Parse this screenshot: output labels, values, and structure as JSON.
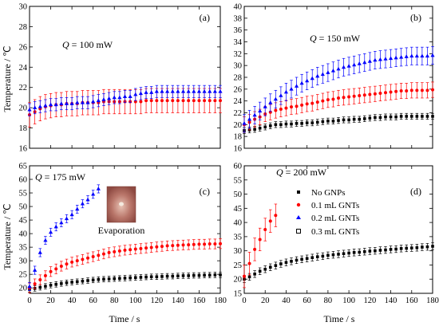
{
  "figure": {
    "ylabel": "Temperature / ℃",
    "xlabel": "Time / s"
  },
  "legend": [
    {
      "label": "No GNPs",
      "marker": "square-filled",
      "color": "#000000"
    },
    {
      "label": "0.1 mL GNTs",
      "marker": "circle",
      "color": "#ff0000"
    },
    {
      "label": "0.2 mL GNTs",
      "marker": "triangle",
      "color": "#0000ff"
    },
    {
      "label": "0.3 mL GNTs",
      "marker": "square-open",
      "color": "#000000"
    }
  ],
  "inset": {
    "label": "Evaporation"
  },
  "chart_data": [
    {
      "type": "scatter",
      "panel": "(a)",
      "annotation_q": "Q",
      "annotation_val": " = 100 mW",
      "xlim": [
        0,
        180
      ],
      "ylim": [
        16,
        30
      ],
      "xticks": [
        0,
        20,
        40,
        60,
        80,
        100,
        120,
        140,
        160,
        180
      ],
      "yticks": [
        16,
        18,
        20,
        22,
        24,
        26,
        28,
        30
      ],
      "series": [
        {
          "name": "0.1 mL GNTs",
          "color": "#ff0000",
          "marker": "circle",
          "x": [
            0,
            5,
            10,
            15,
            20,
            25,
            30,
            35,
            40,
            45,
            50,
            55,
            60,
            65,
            70,
            75,
            80,
            85,
            90,
            95,
            100,
            105,
            110,
            115,
            120,
            125,
            130,
            135,
            140,
            145,
            150,
            155,
            160,
            165,
            170,
            175,
            180
          ],
          "y": [
            19.3,
            19.6,
            19.9,
            20.1,
            20.2,
            20.3,
            20.3,
            20.4,
            20.4,
            20.4,
            20.5,
            20.5,
            20.5,
            20.5,
            20.6,
            20.6,
            20.6,
            20.6,
            20.6,
            20.6,
            20.6,
            20.6,
            20.7,
            20.7,
            20.7,
            20.7,
            20.7,
            20.7,
            20.7,
            20.7,
            20.7,
            20.7,
            20.7,
            20.7,
            20.7,
            20.7,
            20.7
          ],
          "err": 1.2
        },
        {
          "name": "0.2 mL GNTs",
          "color": "#0000ff",
          "marker": "triangle",
          "x": [
            0,
            5,
            10,
            15,
            20,
            25,
            30,
            35,
            40,
            45,
            50,
            55,
            60,
            65,
            70,
            75,
            80,
            85,
            90,
            95,
            100,
            105,
            110,
            115,
            120,
            125,
            130,
            135,
            140,
            145,
            150,
            155,
            160,
            165,
            170,
            175,
            180
          ],
          "y": [
            19.8,
            20.0,
            20.1,
            20.2,
            20.3,
            20.3,
            20.4,
            20.4,
            20.4,
            20.5,
            20.5,
            20.5,
            20.6,
            20.7,
            20.8,
            20.9,
            21.0,
            21.0,
            21.1,
            21.1,
            21.3,
            21.4,
            21.5,
            21.5,
            21.6,
            21.6,
            21.6,
            21.6,
            21.6,
            21.6,
            21.6,
            21.6,
            21.6,
            21.6,
            21.6,
            21.6,
            21.6
          ],
          "err": 0.6
        }
      ]
    },
    {
      "type": "scatter",
      "panel": "(b)",
      "annotation_q": "Q",
      "annotation_val": " = 150 mW",
      "xlim": [
        0,
        180
      ],
      "ylim": [
        16,
        40
      ],
      "xticks": [
        0,
        20,
        40,
        60,
        80,
        100,
        120,
        140,
        160,
        180
      ],
      "yticks": [
        16,
        18,
        20,
        22,
        24,
        26,
        28,
        30,
        32,
        34,
        36,
        38,
        40
      ],
      "series": [
        {
          "name": "No GNPs",
          "color": "#000000",
          "marker": "square",
          "x": [
            0,
            5,
            10,
            15,
            20,
            25,
            30,
            35,
            40,
            45,
            50,
            55,
            60,
            65,
            70,
            75,
            80,
            85,
            90,
            95,
            100,
            105,
            110,
            115,
            120,
            125,
            130,
            135,
            140,
            145,
            150,
            155,
            160,
            165,
            170,
            175,
            180
          ],
          "y": [
            19.0,
            19.1,
            19.2,
            19.4,
            19.6,
            19.8,
            20.0,
            20.0,
            20.1,
            20.1,
            20.2,
            20.2,
            20.3,
            20.3,
            20.4,
            20.5,
            20.6,
            20.6,
            20.7,
            20.8,
            20.8,
            20.9,
            20.9,
            21.0,
            21.1,
            21.2,
            21.2,
            21.3,
            21.3,
            21.3,
            21.4,
            21.4,
            21.4,
            21.4,
            21.4,
            21.4,
            21.4
          ],
          "err": 0.5
        },
        {
          "name": "0.1 mL GNTs",
          "color": "#ff0000",
          "marker": "circle",
          "x": [
            0,
            5,
            10,
            15,
            20,
            25,
            30,
            35,
            40,
            45,
            50,
            55,
            60,
            65,
            70,
            75,
            80,
            85,
            90,
            95,
            100,
            105,
            110,
            115,
            120,
            125,
            130,
            135,
            140,
            145,
            150,
            155,
            160,
            165,
            170,
            175,
            180
          ],
          "y": [
            20.0,
            20.4,
            20.9,
            21.3,
            21.8,
            22.1,
            22.4,
            22.6,
            22.8,
            23.0,
            23.1,
            23.3,
            23.5,
            23.6,
            23.8,
            24.0,
            24.2,
            24.3,
            24.5,
            24.6,
            24.7,
            24.8,
            24.9,
            25.0,
            25.1,
            25.2,
            25.3,
            25.4,
            25.5,
            25.6,
            25.7,
            25.7,
            25.8,
            25.8,
            25.8,
            25.8,
            25.9
          ],
          "err": 1.3
        },
        {
          "name": "0.2 mL GNTs",
          "color": "#0000ff",
          "marker": "triangle",
          "x": [
            0,
            5,
            10,
            15,
            20,
            25,
            30,
            35,
            40,
            45,
            50,
            55,
            60,
            65,
            70,
            75,
            80,
            85,
            90,
            95,
            100,
            105,
            110,
            115,
            120,
            125,
            130,
            135,
            140,
            145,
            150,
            155,
            160,
            165,
            170,
            175,
            180
          ],
          "y": [
            20.2,
            20.9,
            21.6,
            22.3,
            23.0,
            23.7,
            24.3,
            24.9,
            25.5,
            26.0,
            26.5,
            27.0,
            27.4,
            27.8,
            28.2,
            28.5,
            28.8,
            29.1,
            29.4,
            29.7,
            29.9,
            30.1,
            30.3,
            30.5,
            30.7,
            30.9,
            31.0,
            31.1,
            31.2,
            31.3,
            31.4,
            31.5,
            31.6,
            31.6,
            31.6,
            31.6,
            31.7
          ],
          "err": 1.5
        }
      ]
    },
    {
      "type": "scatter",
      "panel": "(c)",
      "annotation_q": "Q",
      "annotation_val": " = 175 mW",
      "xlim": [
        0,
        180
      ],
      "ylim": [
        18,
        65
      ],
      "xticks": [
        0,
        20,
        40,
        60,
        80,
        100,
        120,
        140,
        160,
        180
      ],
      "yticks": [
        20,
        25,
        30,
        35,
        40,
        45,
        50,
        55,
        60,
        65
      ],
      "series": [
        {
          "name": "No GNPs",
          "color": "#000000",
          "marker": "square",
          "x": [
            0,
            5,
            10,
            15,
            20,
            25,
            30,
            35,
            40,
            45,
            50,
            55,
            60,
            65,
            70,
            75,
            80,
            85,
            90,
            95,
            100,
            105,
            110,
            115,
            120,
            125,
            130,
            135,
            140,
            145,
            150,
            155,
            160,
            165,
            170,
            175,
            180
          ],
          "y": [
            19.5,
            19.8,
            20.2,
            20.6,
            21.0,
            21.3,
            21.6,
            21.9,
            22.1,
            22.3,
            22.5,
            22.7,
            22.9,
            23.1,
            23.2,
            23.3,
            23.4,
            23.5,
            23.6,
            23.7,
            23.8,
            23.9,
            24.0,
            24.1,
            24.1,
            24.2,
            24.3,
            24.3,
            24.4,
            24.5,
            24.5,
            24.6,
            24.6,
            24.7,
            24.7,
            24.8,
            24.8
          ],
          "err": 1.0
        },
        {
          "name": "0.1 mL GNTs",
          "color": "#ff0000",
          "marker": "circle",
          "x": [
            0,
            5,
            10,
            15,
            20,
            25,
            30,
            35,
            40,
            45,
            50,
            55,
            60,
            65,
            70,
            75,
            80,
            85,
            90,
            95,
            100,
            105,
            110,
            115,
            120,
            125,
            130,
            135,
            140,
            145,
            150,
            155,
            160,
            165,
            170,
            175,
            180
          ],
          "y": [
            20.0,
            21.5,
            23.0,
            24.5,
            26.0,
            27.0,
            28.0,
            28.8,
            29.5,
            30.0,
            30.5,
            31.0,
            31.5,
            32.0,
            32.5,
            33.0,
            33.3,
            33.6,
            33.9,
            34.1,
            34.3,
            34.5,
            34.7,
            34.9,
            35.1,
            35.3,
            35.5,
            35.6,
            35.7,
            35.8,
            35.9,
            36.0,
            36.1,
            36.1,
            36.2,
            36.2,
            36.3
          ],
          "err": 1.8
        },
        {
          "name": "0.2 mL GNTs",
          "color": "#0000ff",
          "marker": "triangle",
          "x": [
            0,
            5,
            10,
            15,
            20,
            25,
            30,
            35,
            40,
            45,
            50,
            55,
            60,
            65
          ],
          "y": [
            20.5,
            26.5,
            33.0,
            37.5,
            40.5,
            42.5,
            44.0,
            45.5,
            47.0,
            49.0,
            51.0,
            52.5,
            54.5,
            56.5
          ],
          "err": 1.5
        }
      ]
    },
    {
      "type": "scatter",
      "panel": "(d)",
      "annotation_q": "Q",
      "annotation_val": " = 200 mW",
      "xlim": [
        0,
        180
      ],
      "ylim": [
        15,
        60
      ],
      "xticks": [
        0,
        20,
        40,
        60,
        80,
        100,
        120,
        140,
        160,
        180
      ],
      "yticks": [
        15,
        20,
        25,
        30,
        35,
        40,
        45,
        50,
        55,
        60
      ],
      "series": [
        {
          "name": "No GNPs",
          "color": "#000000",
          "marker": "square",
          "x": [
            0,
            5,
            10,
            15,
            20,
            25,
            30,
            35,
            40,
            45,
            50,
            55,
            60,
            65,
            70,
            75,
            80,
            85,
            90,
            95,
            100,
            105,
            110,
            115,
            120,
            125,
            130,
            135,
            140,
            145,
            150,
            155,
            160,
            165,
            170,
            175,
            180
          ],
          "y": [
            20.0,
            20.8,
            21.8,
            22.8,
            23.5,
            24.2,
            24.8,
            25.4,
            25.9,
            26.3,
            26.7,
            27.0,
            27.3,
            27.6,
            27.9,
            28.1,
            28.4,
            28.6,
            28.8,
            29.0,
            29.2,
            29.4,
            29.5,
            29.7,
            29.9,
            30.0,
            30.2,
            30.3,
            30.5,
            30.6,
            30.8,
            30.9,
            31.0,
            31.1,
            31.3,
            31.4,
            31.6
          ],
          "err": 1.2
        },
        {
          "name": "0.1 mL GNTs",
          "color": "#ff0000",
          "marker": "circle",
          "x": [
            0,
            5,
            10,
            15,
            20,
            25,
            30
          ],
          "y": [
            21.0,
            25.5,
            30.5,
            34.0,
            37.5,
            40.5,
            42.5
          ],
          "err": 4.0
        }
      ]
    }
  ]
}
